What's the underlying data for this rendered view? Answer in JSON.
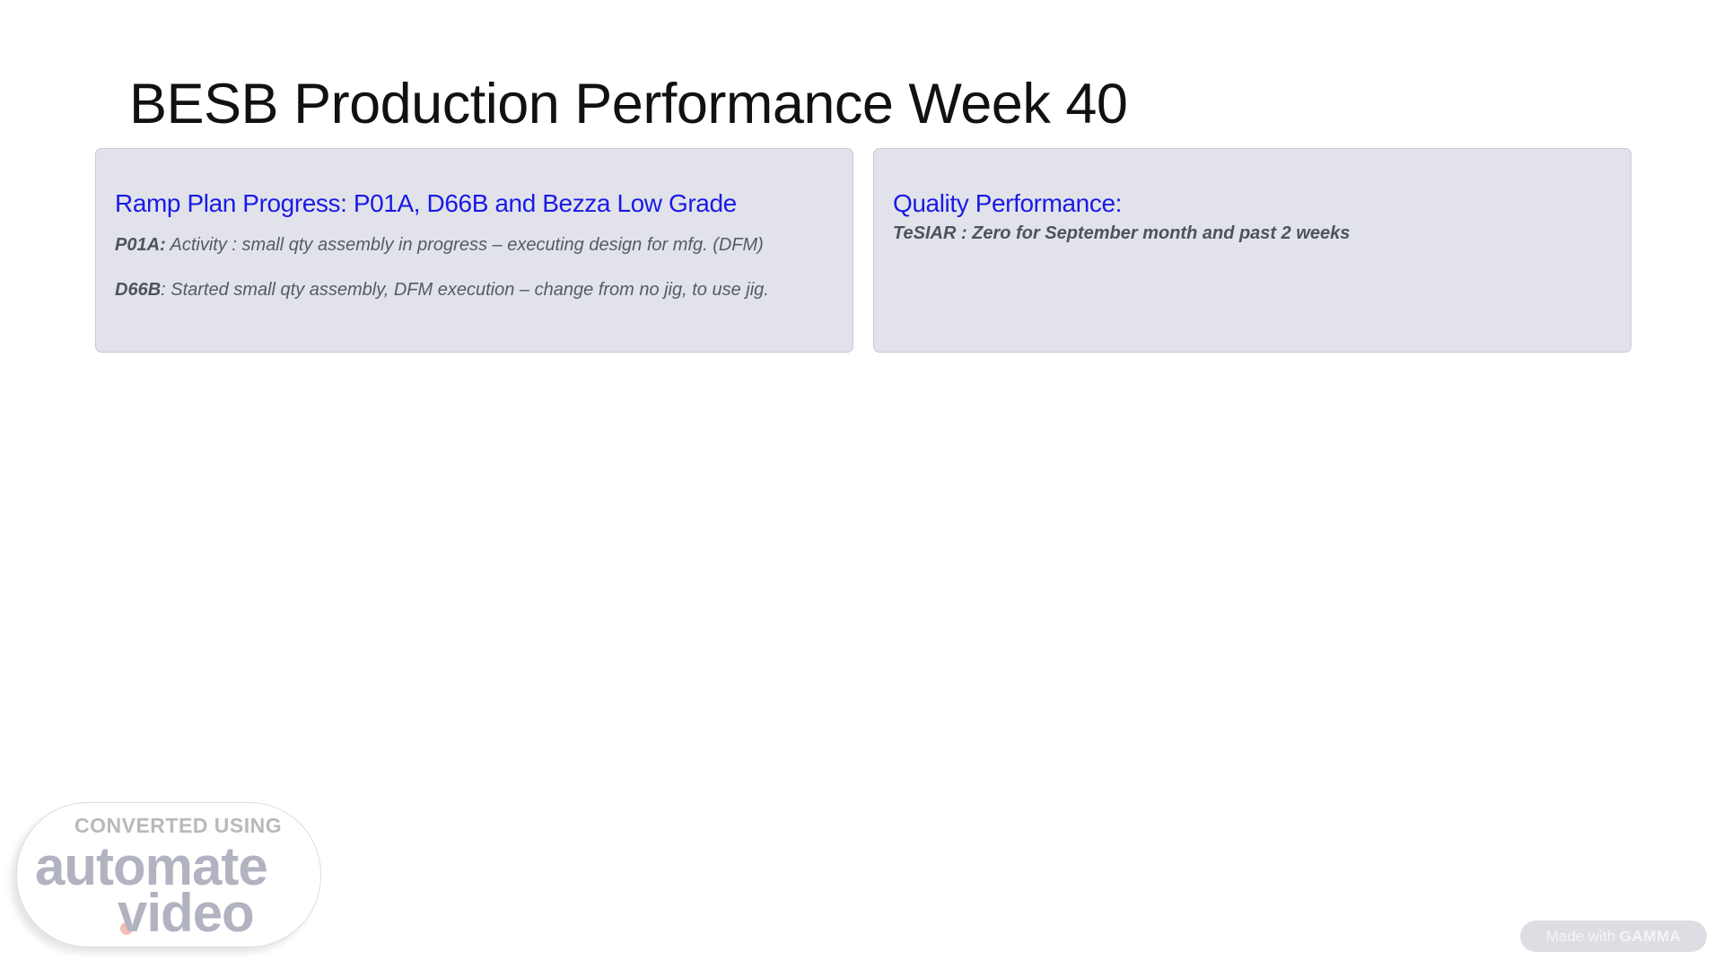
{
  "slide": {
    "title": "BESB Production Performance Week 40"
  },
  "cards": [
    {
      "heading": "Ramp Plan Progress: P01A, D66B and Bezza Low Grade",
      "items": [
        {
          "label": "P01A:",
          "text": " Activity : small qty assembly in  progress – executing design for mfg. (DFM)"
        },
        {
          "label": "D66B",
          "text": ": Started small qty assembly,  DFM execution – change from no jig, to use jig."
        }
      ]
    },
    {
      "heading": "Quality Performance:",
      "items": [
        {
          "label": "TeSIAR :",
          "text": "  Zero for September month and past 2 weeks"
        }
      ]
    }
  ],
  "watermark": {
    "line1": "CONVERTED USING",
    "line2": "automate",
    "line3": "video",
    "dot": "."
  },
  "badge": {
    "prefix": "Made with ",
    "brand": "GAMMA"
  },
  "colors": {
    "heading": "#1a1ae6",
    "card_bg": "#e2e3ea"
  }
}
